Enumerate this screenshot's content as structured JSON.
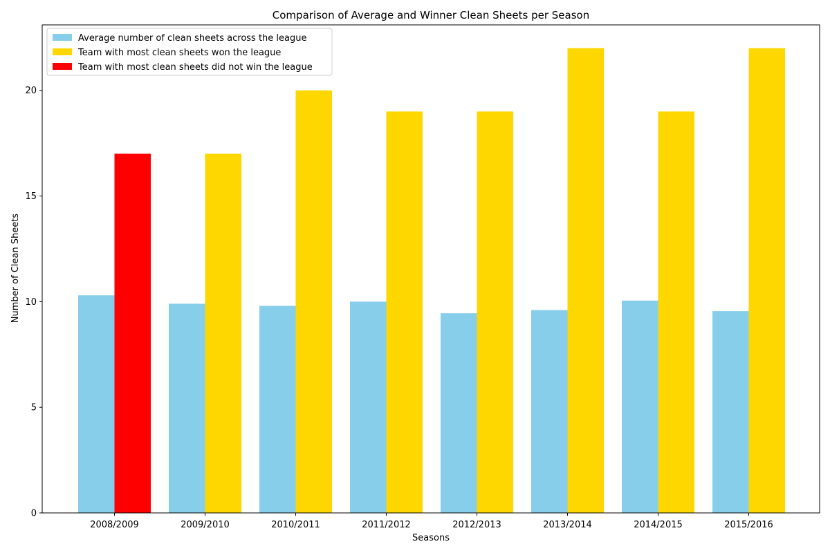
{
  "chart_data": {
    "type": "bar",
    "title": "Comparison of Average and Winner Clean Sheets per Season",
    "xlabel": "Seasons",
    "ylabel": "Number of Clean Sheets",
    "categories": [
      "2008/2009",
      "2009/2010",
      "2010/2011",
      "2011/2012",
      "2012/2013",
      "2013/2014",
      "2014/2015",
      "2015/2016"
    ],
    "ylim": [
      0,
      23.1
    ],
    "yticks": [
      0,
      5,
      10,
      15,
      20
    ],
    "grid": false,
    "legend_position": "upper-left",
    "series": [
      {
        "key": "average",
        "name": "Average number of clean sheets across the league",
        "values": [
          10.3,
          9.9,
          9.8,
          10.0,
          9.45,
          9.6,
          10.05,
          9.55
        ],
        "color": "#87ceeb"
      },
      {
        "key": "most_clean_sheets",
        "values": [
          17,
          17,
          20,
          19,
          19,
          22,
          19,
          22
        ],
        "won_league": [
          false,
          true,
          true,
          true,
          true,
          true,
          true,
          true
        ]
      }
    ],
    "legend": [
      {
        "label": "Average number of clean sheets across the league",
        "color": "#87ceeb"
      },
      {
        "label": "Team with most clean sheets won the league",
        "color": "#ffd700"
      },
      {
        "label": "Team with most clean sheets did not win the league",
        "color": "#ff0000"
      }
    ],
    "colors": {
      "won": "#ffd700",
      "not_won": "#ff0000",
      "average": "#87ceeb"
    }
  }
}
